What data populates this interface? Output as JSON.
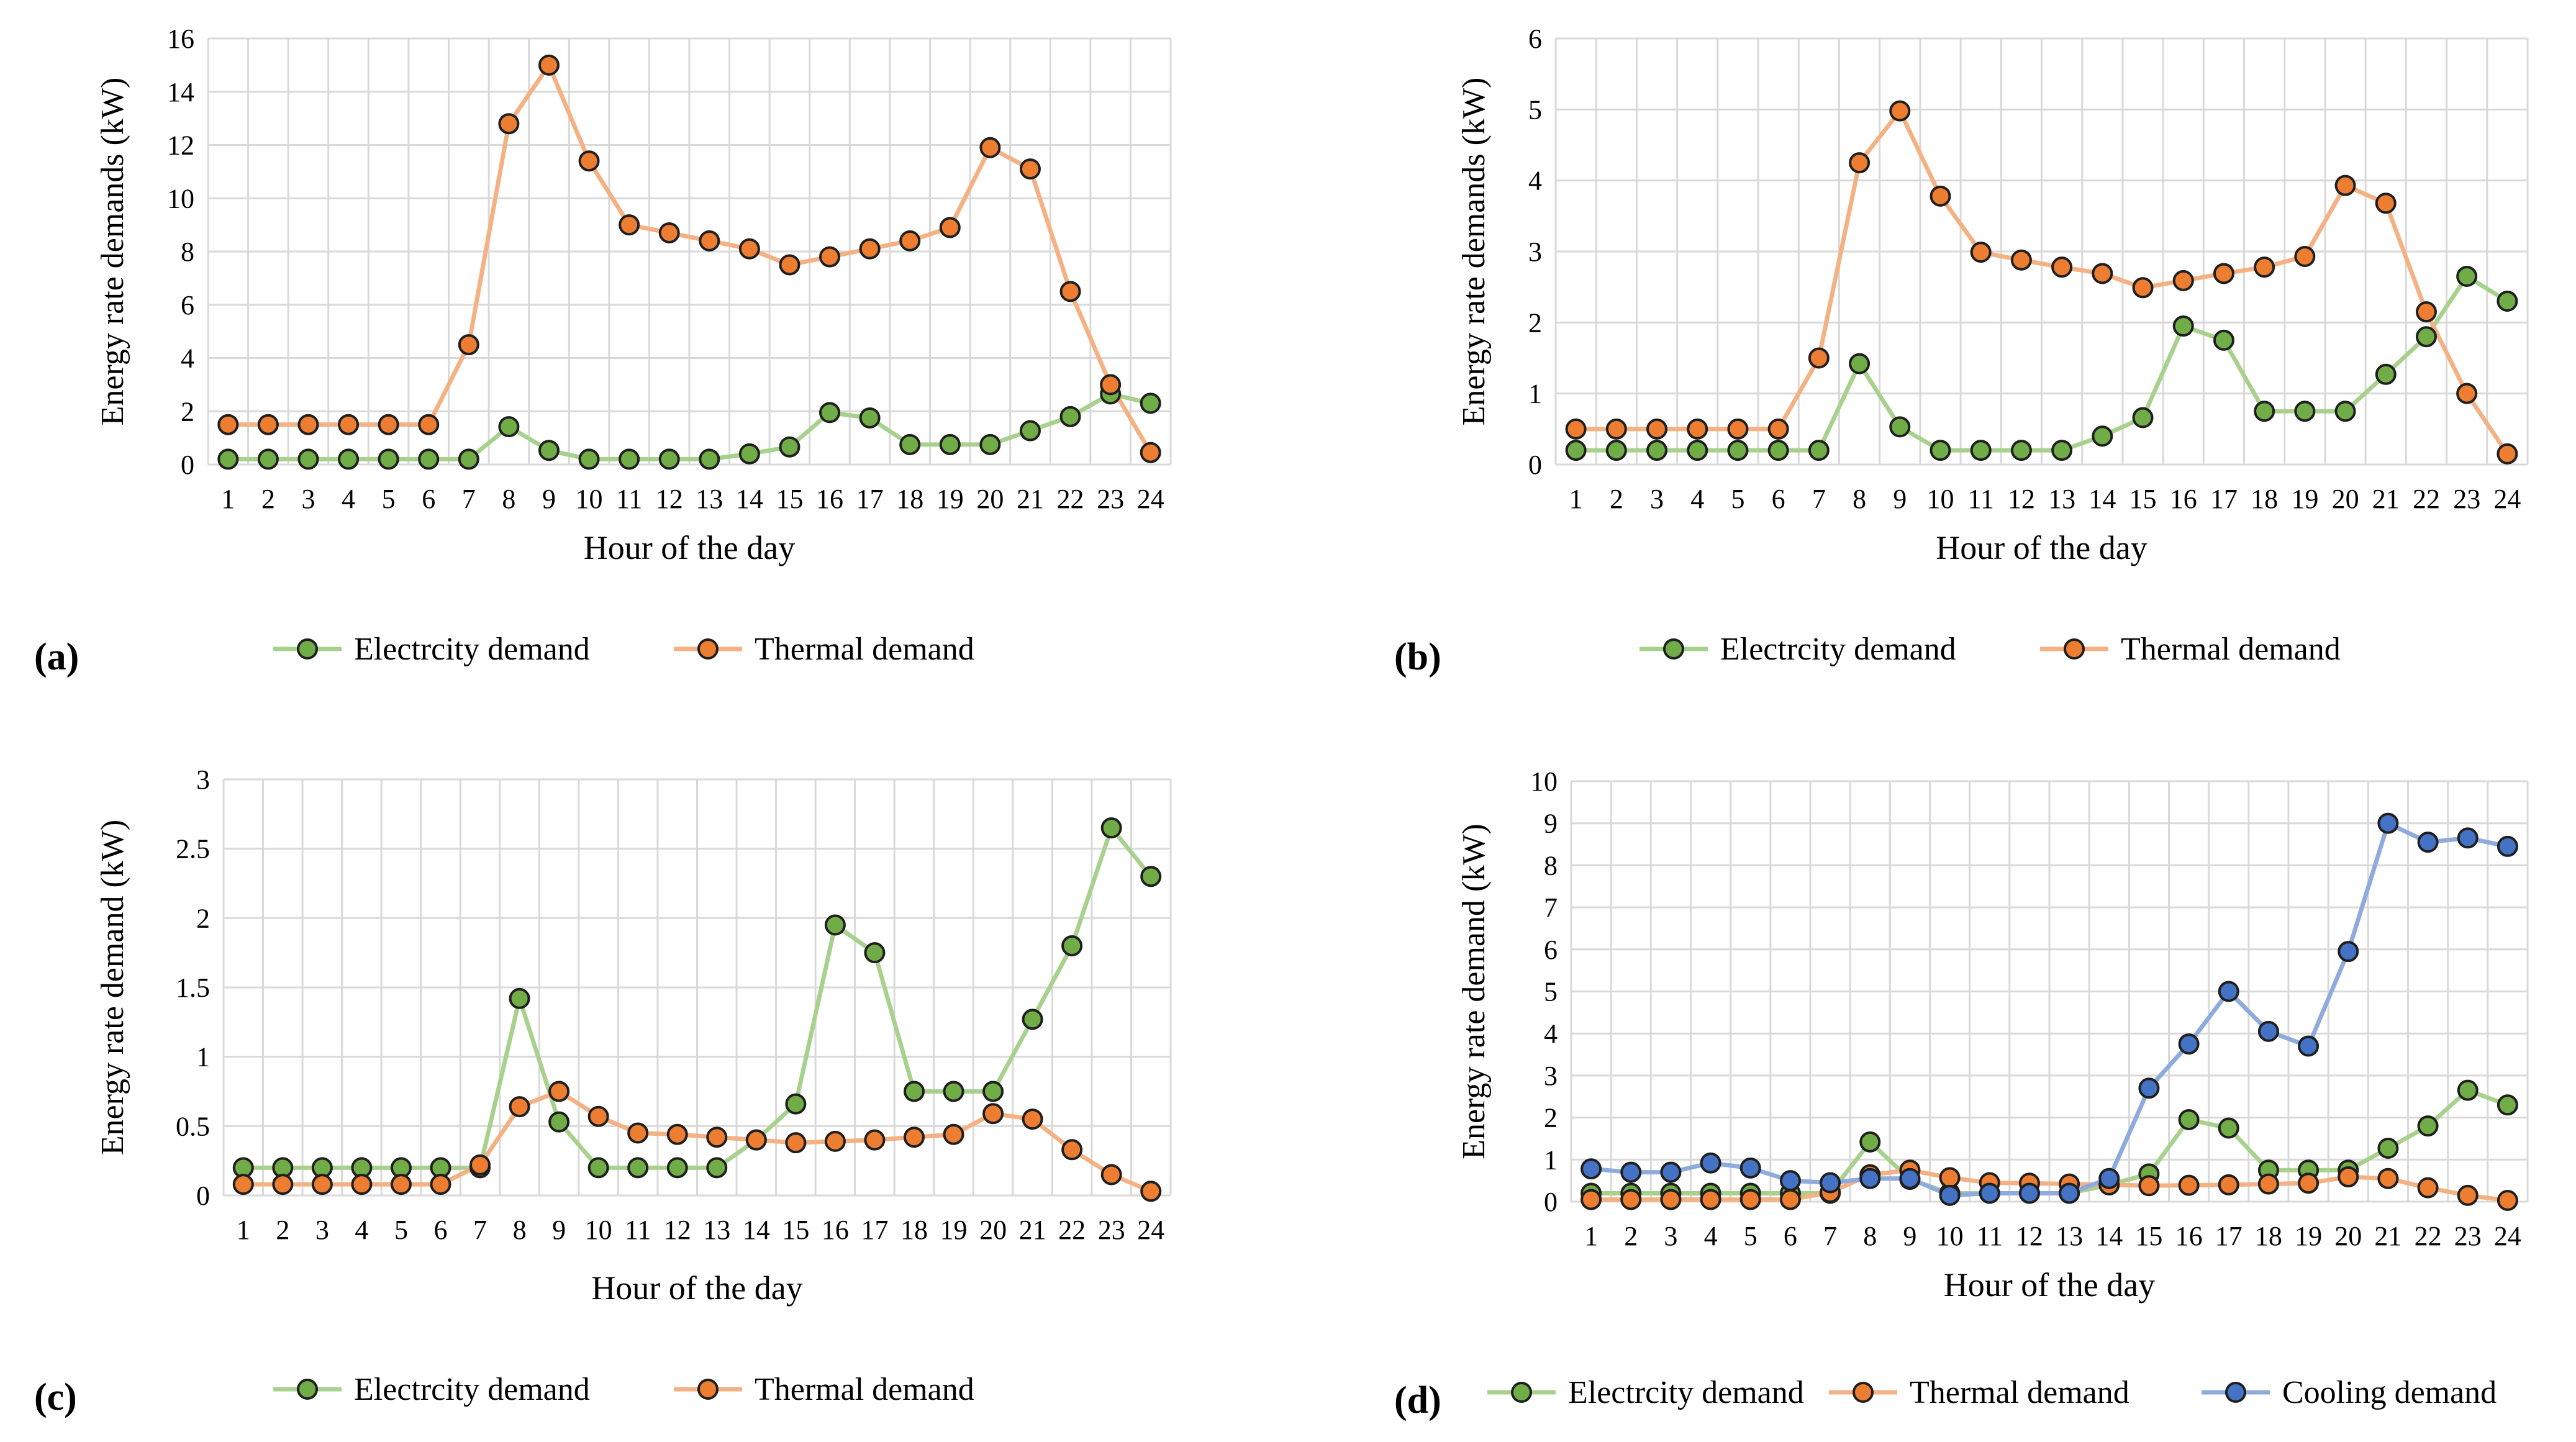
{
  "colors": {
    "electricity_line": "#a9d18e",
    "electricity_marker": "#70ad47",
    "thermal_line": "#f4b183",
    "thermal_marker": "#ed7d31",
    "cooling_line": "#8faadc",
    "cooling_marker": "#4472c4",
    "marker_stroke": "#1f1f1f",
    "grid": "#d9d9d9"
  },
  "legend": {
    "electricity": "Electrcity demand",
    "thermal": "Thermal demand",
    "cooling": "Cooling demand"
  },
  "chart_data": [
    {
      "type": "line",
      "panel_label": "(a)",
      "xlabel": "Hour of the day",
      "ylabel": "Energy rate  demands (kW)",
      "categories": [
        "1",
        "2",
        "3",
        "4",
        "5",
        "6",
        "7",
        "8",
        "9",
        "10",
        "11",
        "12",
        "13",
        "14",
        "15",
        "16",
        "17",
        "18",
        "19",
        "20",
        "21",
        "22",
        "23",
        "24"
      ],
      "ylim": [
        0,
        16
      ],
      "yticks": [
        "0",
        "2",
        "4",
        "6",
        "8",
        "10",
        "12",
        "14",
        "16"
      ],
      "legend_position": "bottom",
      "grid": true,
      "series": [
        {
          "name": "Electrcity demand",
          "color_key": "electricity",
          "values": [
            0.2,
            0.2,
            0.2,
            0.2,
            0.2,
            0.2,
            0.2,
            1.42,
            0.53,
            0.2,
            0.2,
            0.2,
            0.2,
            0.4,
            0.66,
            1.95,
            1.75,
            0.75,
            0.75,
            0.75,
            1.27,
            1.8,
            2.65,
            2.3
          ]
        },
        {
          "name": "Thermal demand",
          "color_key": "thermal",
          "values": [
            1.5,
            1.5,
            1.5,
            1.5,
            1.5,
            1.5,
            4.5,
            12.8,
            15.0,
            11.4,
            9.0,
            8.7,
            8.4,
            8.1,
            7.5,
            7.8,
            8.1,
            8.4,
            8.9,
            11.9,
            11.1,
            6.5,
            3.0,
            0.45
          ]
        }
      ]
    },
    {
      "type": "line",
      "panel_label": "(b)",
      "xlabel": "Hour of the day",
      "ylabel": "Energy rate demands (kW)",
      "categories": [
        "1",
        "2",
        "3",
        "4",
        "5",
        "6",
        "7",
        "8",
        "9",
        "10",
        "11",
        "12",
        "13",
        "14",
        "15",
        "16",
        "17",
        "18",
        "19",
        "20",
        "21",
        "22",
        "23",
        "24"
      ],
      "ylim": [
        0,
        6
      ],
      "yticks": [
        "0",
        "1",
        "2",
        "3",
        "4",
        "5",
        "6"
      ],
      "legend_position": "bottom",
      "grid": true,
      "series": [
        {
          "name": "Electrcity demand",
          "color_key": "electricity",
          "values": [
            0.2,
            0.2,
            0.2,
            0.2,
            0.2,
            0.2,
            0.2,
            1.42,
            0.53,
            0.2,
            0.2,
            0.2,
            0.2,
            0.4,
            0.66,
            1.95,
            1.75,
            0.75,
            0.75,
            0.75,
            1.27,
            1.8,
            2.65,
            2.3
          ]
        },
        {
          "name": "Thermal demand",
          "color_key": "thermal",
          "values": [
            0.5,
            0.5,
            0.5,
            0.5,
            0.5,
            0.5,
            1.5,
            4.25,
            4.98,
            3.78,
            2.99,
            2.88,
            2.78,
            2.69,
            2.49,
            2.59,
            2.69,
            2.78,
            2.93,
            3.93,
            3.68,
            2.15,
            1.0,
            0.15
          ]
        }
      ]
    },
    {
      "type": "line",
      "panel_label": "(c)",
      "xlabel": "Hour of the day",
      "ylabel": "Energy rate demand (kW)",
      "categories": [
        "1",
        "2",
        "3",
        "4",
        "5",
        "6",
        "7",
        "8",
        "9",
        "10",
        "11",
        "12",
        "13",
        "14",
        "15",
        "16",
        "17",
        "18",
        "19",
        "20",
        "21",
        "22",
        "23",
        "24"
      ],
      "ylim": [
        0,
        3
      ],
      "yticks": [
        "0",
        "0.5",
        "1",
        "1.5",
        "2",
        "2.5",
        "3"
      ],
      "legend_position": "bottom",
      "grid": true,
      "series": [
        {
          "name": "Electrcity demand",
          "color_key": "electricity",
          "values": [
            0.2,
            0.2,
            0.2,
            0.2,
            0.2,
            0.2,
            0.2,
            1.42,
            0.53,
            0.2,
            0.2,
            0.2,
            0.2,
            0.4,
            0.66,
            1.95,
            1.75,
            0.75,
            0.75,
            0.75,
            1.27,
            1.8,
            2.65,
            2.3
          ]
        },
        {
          "name": "Thermal demand",
          "color_key": "thermal",
          "values": [
            0.08,
            0.08,
            0.08,
            0.08,
            0.08,
            0.08,
            0.22,
            0.64,
            0.75,
            0.57,
            0.45,
            0.44,
            0.42,
            0.4,
            0.38,
            0.39,
            0.4,
            0.42,
            0.44,
            0.59,
            0.55,
            0.33,
            0.15,
            0.03
          ]
        }
      ]
    },
    {
      "type": "line",
      "panel_label": "(d)",
      "xlabel": "Hour of the day",
      "ylabel": "Energy rate demand (kW)",
      "categories": [
        "1",
        "2",
        "3",
        "4",
        "5",
        "6",
        "7",
        "8",
        "9",
        "10",
        "11",
        "12",
        "13",
        "14",
        "15",
        "16",
        "17",
        "18",
        "19",
        "20",
        "21",
        "22",
        "23",
        "24"
      ],
      "ylim": [
        0,
        10
      ],
      "yticks": [
        "0",
        "1",
        "2",
        "3",
        "4",
        "5",
        "6",
        "7",
        "8",
        "9",
        "10"
      ],
      "legend_position": "bottom",
      "grid": true,
      "series": [
        {
          "name": "Electrcity demand",
          "color_key": "electricity",
          "values": [
            0.2,
            0.2,
            0.2,
            0.2,
            0.2,
            0.2,
            0.2,
            1.42,
            0.53,
            0.2,
            0.2,
            0.2,
            0.2,
            0.4,
            0.66,
            1.95,
            1.75,
            0.75,
            0.75,
            0.75,
            1.27,
            1.8,
            2.65,
            2.3
          ]
        },
        {
          "name": "Thermal demand",
          "color_key": "thermal",
          "values": [
            0.05,
            0.05,
            0.05,
            0.05,
            0.05,
            0.05,
            0.22,
            0.64,
            0.75,
            0.57,
            0.45,
            0.44,
            0.42,
            0.4,
            0.38,
            0.39,
            0.4,
            0.42,
            0.44,
            0.59,
            0.55,
            0.33,
            0.15,
            0.03
          ]
        },
        {
          "name": "Cooling demand",
          "color_key": "cooling",
          "values": [
            0.78,
            0.7,
            0.7,
            0.92,
            0.8,
            0.5,
            0.45,
            0.55,
            0.55,
            0.15,
            0.2,
            0.2,
            0.2,
            0.55,
            2.7,
            3.75,
            5.0,
            4.05,
            3.7,
            5.95,
            9.0,
            8.55,
            8.65,
            8.45
          ]
        }
      ]
    }
  ]
}
